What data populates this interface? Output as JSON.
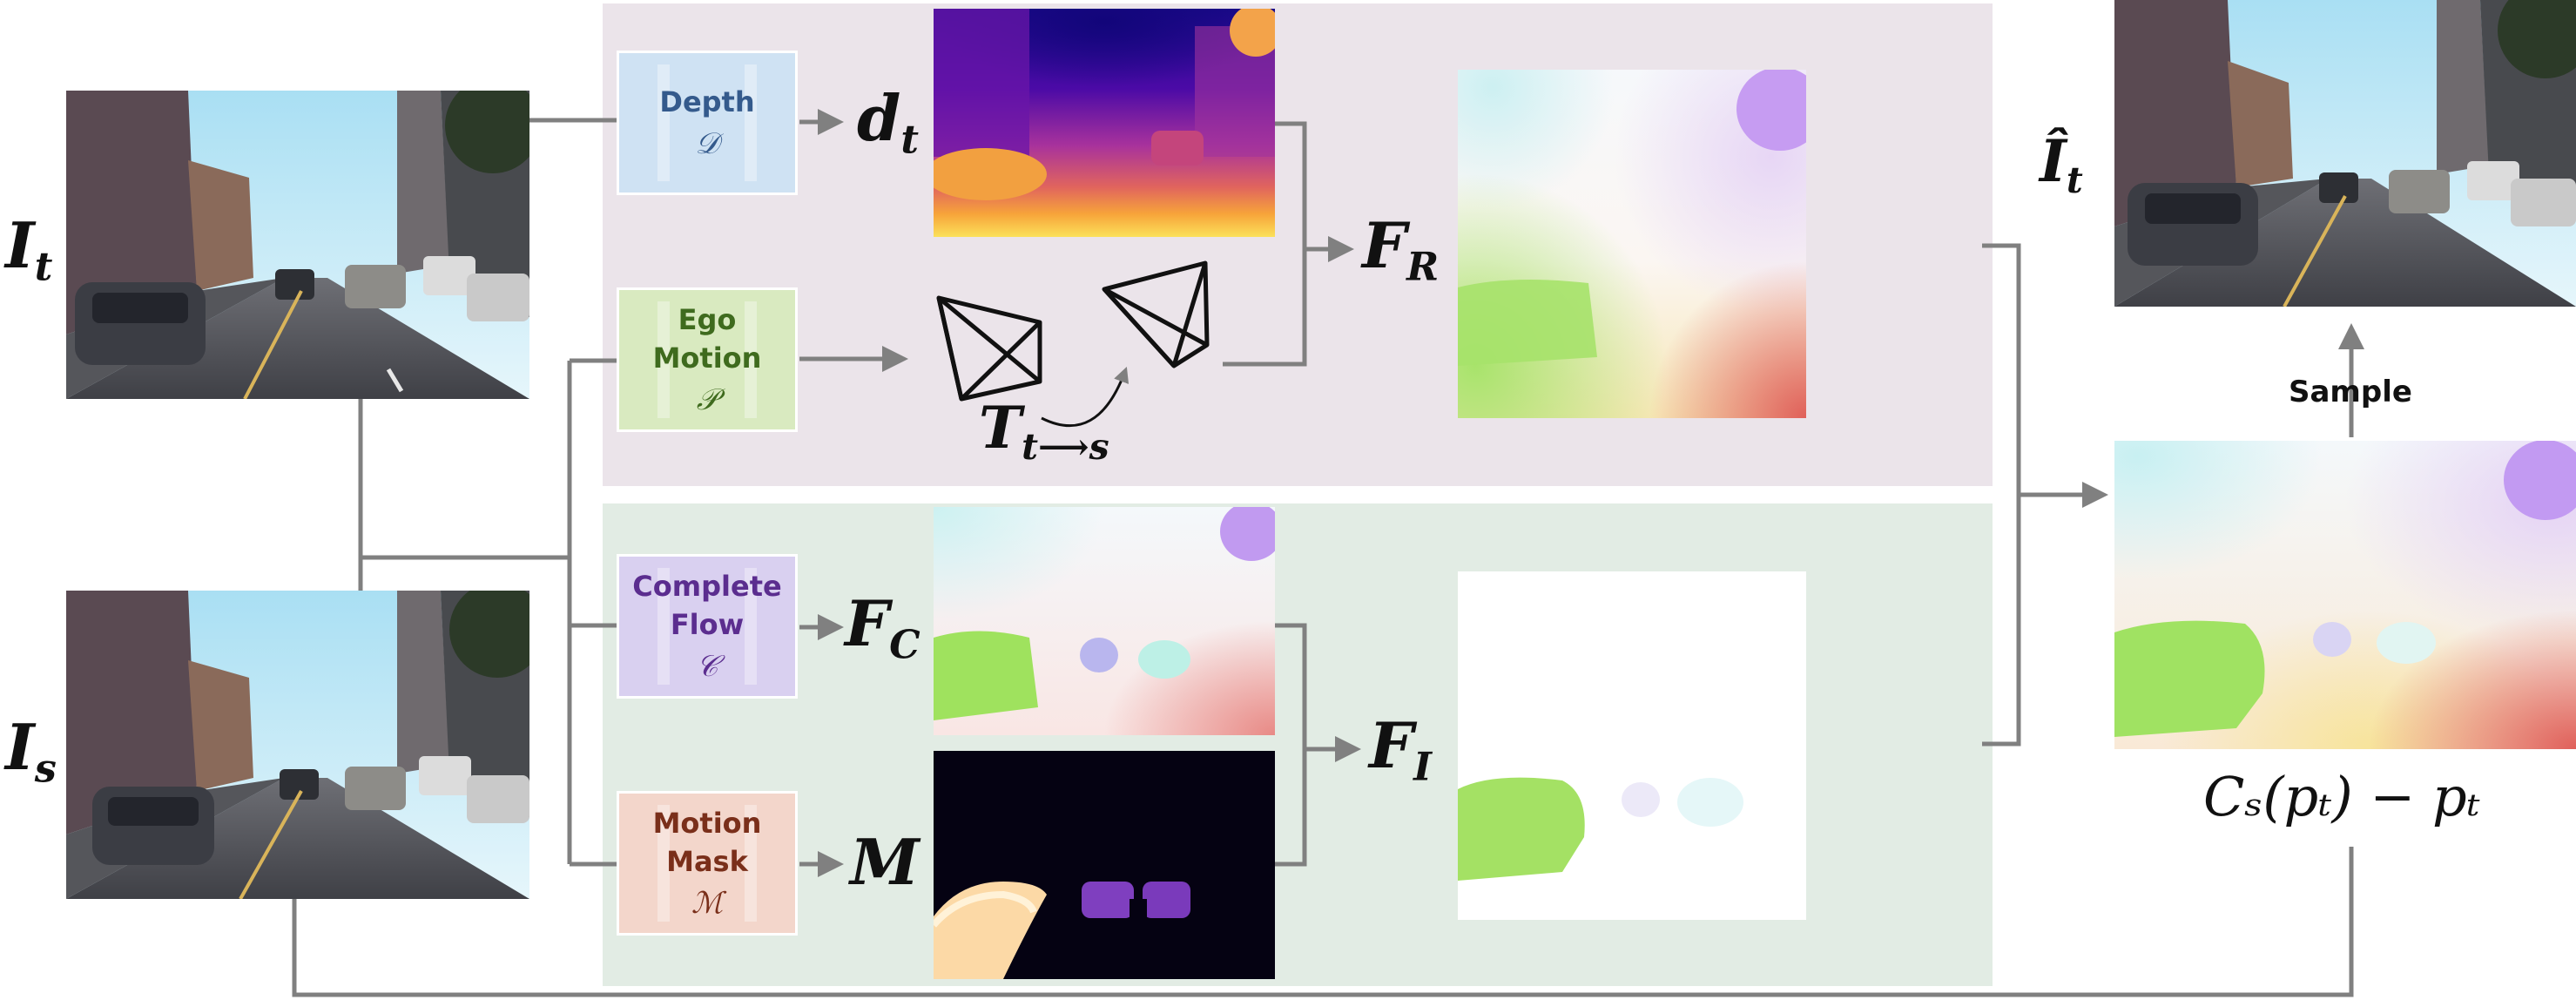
{
  "colors": {
    "rigid_panel": "#ebe4ea",
    "independent_panel": "#e2ece4",
    "arrow": "#808080",
    "depth_module_bg": "#cfe2f3",
    "depth_module_text": "#345a8c",
    "ego_module_bg": "#d9eac0",
    "ego_module_text": "#3f6b1e",
    "flow_module_bg": "#d9d0f0",
    "flow_module_text": "#5b2d8f",
    "mask_module_bg": "#f3d6cb",
    "mask_module_text": "#7a2f1a"
  },
  "inputs": {
    "target_label": "I",
    "target_sub": "t",
    "source_label": "I",
    "source_sub": "s"
  },
  "modules": {
    "depth": {
      "label": "Depth",
      "symbol": "𝒟"
    },
    "ego_motion": {
      "label_line1": "Ego",
      "label_line2": "Motion",
      "symbol": "𝒫"
    },
    "complete_flow": {
      "label_line1": "Complete",
      "label_line2": "Flow",
      "symbol": "𝒞"
    },
    "motion_mask": {
      "label_line1": "Motion",
      "label_line2": "Mask",
      "symbol": "ℳ"
    }
  },
  "outputs": {
    "depth_label": "d",
    "depth_sub": "t",
    "pose_label": "T",
    "pose_sub": "t⟶s",
    "rigid_flow_label": "F",
    "rigid_flow_sub": "R",
    "complete_flow_label": "F",
    "complete_flow_sub": "C",
    "mask_label": "M",
    "independent_flow_label": "F",
    "independent_flow_sub": "I",
    "recon_label": "Î",
    "recon_sub": "t"
  },
  "sample_label": "Sample",
  "formula": "Cₛ(pₜ) − pₜ"
}
